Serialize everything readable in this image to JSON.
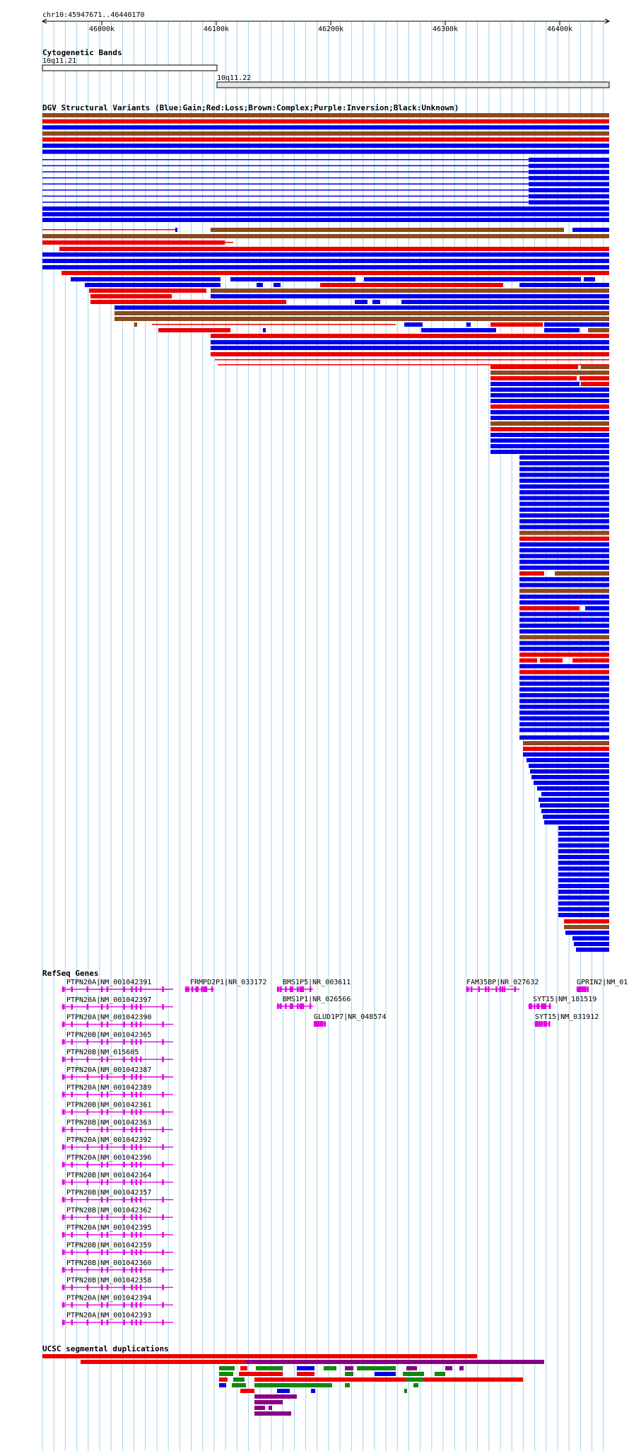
{
  "colors": {
    "gain": "#0000ee",
    "loss": "#ee0000",
    "complex": "#8b4a1e",
    "inversion": "#880088",
    "unknown": "#000000",
    "refseq": "#e600e6",
    "segdup_red": "#ee0000",
    "segdup_purple": "#880088",
    "segdup_green": "#118811",
    "segdup_blue": "#0000ee",
    "grid": "#9fd3ec"
  },
  "ruler": {
    "position_label": "chr10:45947671..46440170",
    "ticks": [
      "46000k",
      "46100k",
      "46200k",
      "46300k",
      "46400k"
    ]
  },
  "cytobands": {
    "title": "Cytogenetic Bands",
    "bands": [
      {
        "name": "10q11.21",
        "style": "open"
      },
      {
        "name": "10q11.22",
        "style": "shaded"
      }
    ]
  },
  "dgv": {
    "title": "DGV Structural Variants (Blue:Gain;Red:Loss;Brown:Complex;Purple:Inversion;Black:Unknown)"
  },
  "refseq": {
    "title": "RefSeq Genes",
    "genes": [
      {
        "label": "PTPN20A|NM_001042391"
      },
      {
        "label": "PTPN20A|NM_001042397"
      },
      {
        "label": "PTPN20A|NM_001042390"
      },
      {
        "label": "PTPN20B|NM_001042365"
      },
      {
        "label": "PTPN20B|NM_015605"
      },
      {
        "label": "PTPN20A|NM_001042387"
      },
      {
        "label": "PTPN20A|NM_001042389"
      },
      {
        "label": "PTPN20B|NM_001042361"
      },
      {
        "label": "PTPN20B|NM_001042363"
      },
      {
        "label": "PTPN20A|NM_001042392"
      },
      {
        "label": "PTPN20A|NM_001042396"
      },
      {
        "label": "PTPN20B|NM_001042364"
      },
      {
        "label": "PTPN20B|NM_001042357"
      },
      {
        "label": "PTPN20B|NM_001042362"
      },
      {
        "label": "PTPN20A|NM_001042395"
      },
      {
        "label": "PTPN20B|NM_001042359"
      },
      {
        "label": "PTPN20B|NM_001042360"
      },
      {
        "label": "PTPN20B|NM_001042358"
      },
      {
        "label": "PTPN20A|NM_001042394"
      },
      {
        "label": "PTPN20A|NM_001042393"
      },
      {
        "label": "FRMPD2P1|NR_033172"
      },
      {
        "label": "BMS1P5|NR_003611"
      },
      {
        "label": "BMS1P1|NR_026566"
      },
      {
        "label": "GLUD1P7|NR_048574"
      },
      {
        "label": "FAM35BP|NR_027632"
      },
      {
        "label": "SYT15|NM_181519"
      },
      {
        "label": "SYT15|NM_031912"
      },
      {
        "label": "GPRIN2|NM_01..."
      }
    ]
  },
  "segdups": {
    "title": "UCSC segmental duplications"
  }
}
